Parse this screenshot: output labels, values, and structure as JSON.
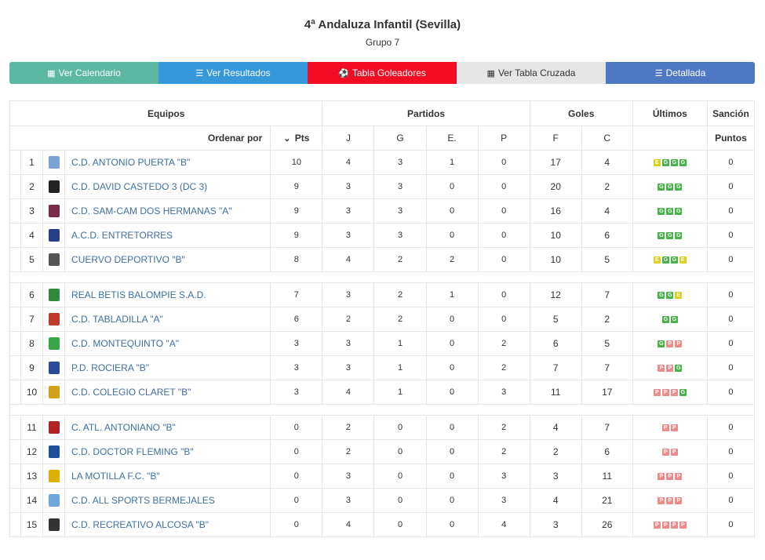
{
  "header": {
    "title": "4ª Andaluza Infantil (Sevilla)",
    "subtitle": "Grupo 7"
  },
  "tabs": [
    {
      "label": "Ver Calendario",
      "icon": "calendar-icon",
      "bg": "#5cb8a3",
      "fg": "#ffffff"
    },
    {
      "label": "Ver Resultados",
      "icon": "list-icon",
      "bg": "#3498db",
      "fg": "#ffffff"
    },
    {
      "label": "Tabla Goleadores",
      "icon": "soccer-ball-icon",
      "bg": "#f20d24",
      "fg": "#ffffff"
    },
    {
      "label": "Ver Tabla Cruzada",
      "icon": "table-grid-icon",
      "bg": "#e6e6e6",
      "fg": "#333333"
    },
    {
      "label": "Detallada",
      "icon": "detailed-list-icon",
      "bg": "#4e79c2",
      "fg": "#ffffff"
    }
  ],
  "table": {
    "headers": {
      "equipos": "Equipos",
      "partidos": "Partidos",
      "goles": "Goles",
      "ultimos": "Últimos",
      "sancion": "Sanción"
    },
    "subheaders": {
      "order_by": "Ordenar por",
      "pts": "Pts",
      "j": "J",
      "g": "G",
      "e": "E.",
      "p": "P",
      "f": "F",
      "c": "C",
      "puntos": "Puntos"
    },
    "groups": [
      [
        {
          "pos": "1",
          "name": "C.D. ANTONIO PUERTA \"B\"",
          "pts": "10",
          "j": "4",
          "g": "3",
          "e": "1",
          "p": "0",
          "f": "17",
          "c": "4",
          "form": [
            "E",
            "G",
            "G",
            "G"
          ],
          "sancion": "0",
          "logo_color": "#7aa3d8"
        },
        {
          "pos": "2",
          "name": "C.D. DAVID CASTEDO 3 (DC 3)",
          "pts": "9",
          "j": "3",
          "g": "3",
          "e": "0",
          "p": "0",
          "f": "20",
          "c": "2",
          "form": [
            "G",
            "G",
            "G"
          ],
          "sancion": "0",
          "logo_color": "#222222"
        },
        {
          "pos": "3",
          "name": "C.D. SAM-CAM DOS HERMANAS \"A\"",
          "pts": "9",
          "j": "3",
          "g": "3",
          "e": "0",
          "p": "0",
          "f": "16",
          "c": "4",
          "form": [
            "G",
            "G",
            "G"
          ],
          "sancion": "0",
          "logo_color": "#7a2a4a"
        },
        {
          "pos": "4",
          "name": "A.C.D. ENTRETORRES",
          "pts": "9",
          "j": "3",
          "g": "3",
          "e": "0",
          "p": "0",
          "f": "10",
          "c": "6",
          "form": [
            "G",
            "G",
            "G"
          ],
          "sancion": "0",
          "logo_color": "#2a3f8a"
        },
        {
          "pos": "5",
          "name": "CUERVO DEPORTIVO \"B\"",
          "pts": "8",
          "j": "4",
          "g": "2",
          "e": "2",
          "p": "0",
          "f": "10",
          "c": "5",
          "form": [
            "E",
            "G",
            "G",
            "E"
          ],
          "sancion": "0",
          "logo_color": "#555555"
        }
      ],
      [
        {
          "pos": "6",
          "name": "REAL BETIS BALOMPIE S.A.D.",
          "pts": "7",
          "j": "3",
          "g": "2",
          "e": "1",
          "p": "0",
          "f": "12",
          "c": "7",
          "form": [
            "G",
            "G",
            "E"
          ],
          "sancion": "0",
          "logo_color": "#2e8b3e"
        },
        {
          "pos": "7",
          "name": "C.D. TABLADILLA \"A\"",
          "pts": "6",
          "j": "2",
          "g": "2",
          "e": "0",
          "p": "0",
          "f": "5",
          "c": "2",
          "form": [
            "G",
            "G"
          ],
          "sancion": "0",
          "logo_color": "#c0392b"
        },
        {
          "pos": "8",
          "name": "C.D. MONTEQUINTO \"A\"",
          "pts": "3",
          "j": "3",
          "g": "1",
          "e": "0",
          "p": "2",
          "f": "6",
          "c": "5",
          "form": [
            "G",
            "P",
            "P"
          ],
          "sancion": "0",
          "logo_color": "#3aa64a"
        },
        {
          "pos": "9",
          "name": "P.D. ROCIERA \"B\"",
          "pts": "3",
          "j": "3",
          "g": "1",
          "e": "0",
          "p": "2",
          "f": "7",
          "c": "7",
          "form": [
            "P",
            "P",
            "G"
          ],
          "sancion": "0",
          "logo_color": "#2b4a9a"
        },
        {
          "pos": "10",
          "name": "C.D. COLEGIO CLARET \"B\"",
          "pts": "3",
          "j": "4",
          "g": "1",
          "e": "0",
          "p": "3",
          "f": "11",
          "c": "17",
          "form": [
            "P",
            "P",
            "P",
            "G"
          ],
          "sancion": "0",
          "logo_color": "#d4a017"
        }
      ],
      [
        {
          "pos": "11",
          "name": "C. ATL. ANTONIANO \"B\"",
          "pts": "0",
          "j": "2",
          "g": "0",
          "e": "0",
          "p": "2",
          "f": "4",
          "c": "7",
          "form": [
            "P",
            "P"
          ],
          "sancion": "0",
          "logo_color": "#b22222"
        },
        {
          "pos": "12",
          "name": "C.D. DOCTOR FLEMING \"B\"",
          "pts": "0",
          "j": "2",
          "g": "0",
          "e": "0",
          "p": "2",
          "f": "2",
          "c": "6",
          "form": [
            "P",
            "P"
          ],
          "sancion": "0",
          "logo_color": "#1f4e9c"
        },
        {
          "pos": "13",
          "name": "LA MOTILLA F.C. \"B\"",
          "pts": "0",
          "j": "3",
          "g": "0",
          "e": "0",
          "p": "3",
          "f": "3",
          "c": "11",
          "form": [
            "P",
            "P",
            "P"
          ],
          "sancion": "0",
          "logo_color": "#e0b000"
        },
        {
          "pos": "14",
          "name": "C.D. ALL SPORTS BERMEJALES",
          "pts": "0",
          "j": "3",
          "g": "0",
          "e": "0",
          "p": "3",
          "f": "4",
          "c": "21",
          "form": [
            "P",
            "P",
            "P"
          ],
          "sancion": "0",
          "logo_color": "#6fa8dc"
        },
        {
          "pos": "15",
          "name": "C.D. RECREATIVO ALCOSA \"B\"",
          "pts": "0",
          "j": "4",
          "g": "0",
          "e": "0",
          "p": "4",
          "f": "3",
          "c": "26",
          "form": [
            "P",
            "P",
            "P",
            "P"
          ],
          "sancion": "0",
          "logo_color": "#333333"
        }
      ]
    ]
  },
  "colors": {
    "form_win": "#4ab24a",
    "form_draw": "#dcd11a",
    "form_loss": "#ee8a8a",
    "team_link": "#3f6fa0"
  }
}
